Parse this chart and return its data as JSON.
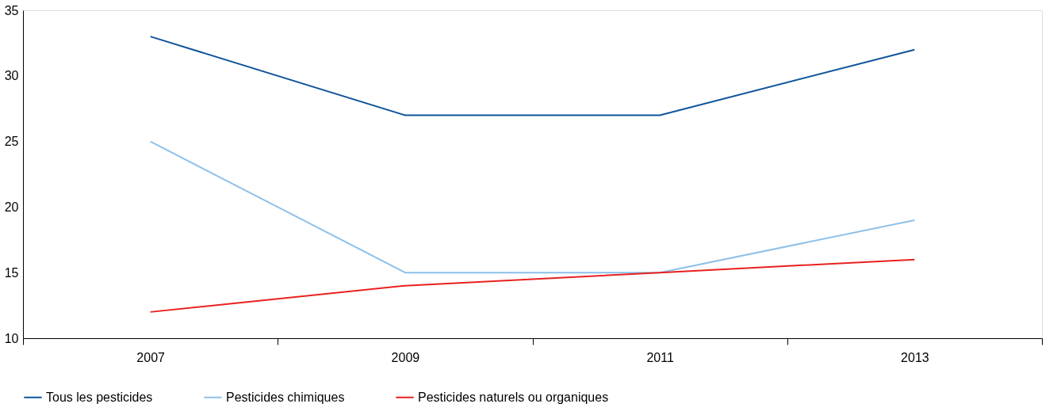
{
  "chart_data": {
    "type": "line",
    "categories": [
      "2007",
      "2009",
      "2011",
      "2013"
    ],
    "series": [
      {
        "name": "Tous les pesticides",
        "color": "#0f5499",
        "values": [
          33,
          27,
          27,
          32
        ]
      },
      {
        "name": "Pesticides chimiques",
        "color": "#8fc0e8",
        "values": [
          25,
          15,
          15,
          19
        ]
      },
      {
        "name": "Pesticides naturels ou organiques",
        "color": "#e8211f",
        "values": [
          12,
          14,
          15,
          16
        ]
      }
    ],
    "ylim": [
      10,
      35
    ],
    "yticks": [
      10,
      15,
      20,
      25,
      30,
      35
    ],
    "grid": false,
    "legend": "bottom",
    "marker": "none",
    "line_style": "solid"
  }
}
